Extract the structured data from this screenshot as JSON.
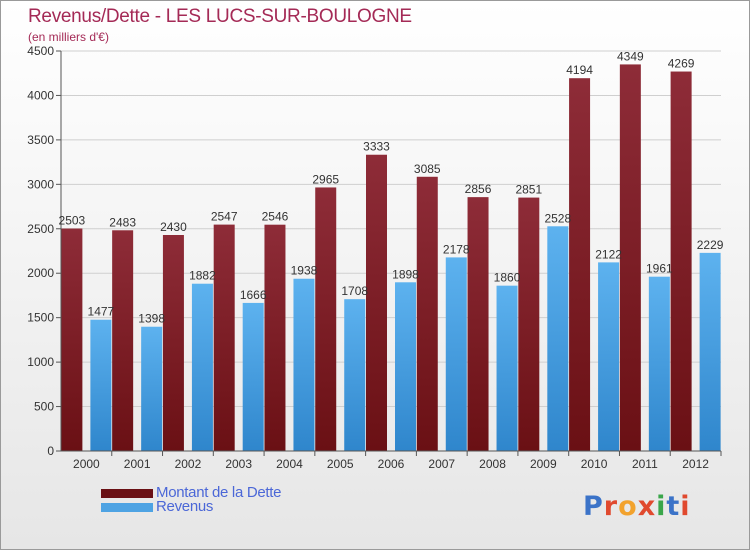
{
  "title": "Revenus/Dette - LES LUCS-SUR-BOULOGNE",
  "subtitle": "(en milliers d'€)",
  "colors": {
    "dette": "#6a1014",
    "revenus": "#4ea3e3"
  },
  "legend": {
    "dette_label": "Montant de la Dette",
    "revenus_label": "Revenus"
  },
  "logo": {
    "text": "Proxiti"
  },
  "chart_data": {
    "type": "bar",
    "categories": [
      "2000",
      "2001",
      "2002",
      "2003",
      "2004",
      "2005",
      "2006",
      "2007",
      "2008",
      "2009",
      "2010",
      "2011",
      "2012"
    ],
    "series": [
      {
        "name": "Montant de la Dette",
        "values": [
          2503,
          2483,
          2430,
          2547,
          2546,
          2965,
          3333,
          3085,
          2856,
          2851,
          4194,
          4349,
          4269
        ]
      },
      {
        "name": "Revenus",
        "values": [
          1477,
          1398,
          1882,
          1666,
          1938,
          1708,
          1898,
          2178,
          1860,
          2528,
          2122,
          1961,
          2229
        ]
      }
    ],
    "ylim": [
      0,
      4500
    ],
    "yticks": [
      0,
      500,
      1000,
      1500,
      2000,
      2500,
      3000,
      3500,
      4000,
      4500
    ],
    "grid": true,
    "legend_position": "bottom-left"
  }
}
